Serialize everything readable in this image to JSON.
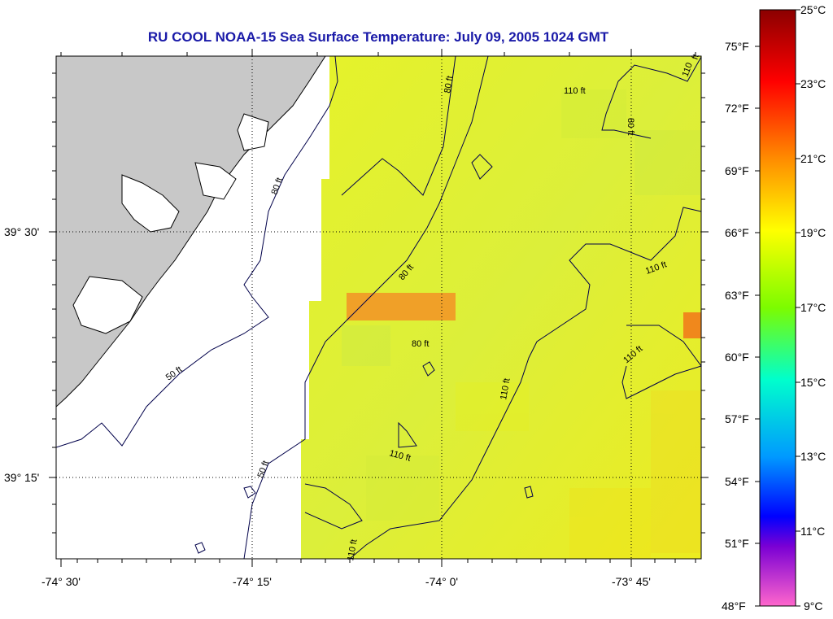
{
  "title": "RU COOL  NOAA-15  Sea Surface Temperature:  July 09, 2005 1024 GMT",
  "map": {
    "lon_labels": [
      "-74° 30'",
      "-74° 15'",
      "-74° 0'",
      "-73° 45'"
    ],
    "lat_labels": [
      "39° 30'",
      "39° 15'"
    ],
    "contour_labels": [
      "80 ft",
      "110 ft",
      "80 ft",
      "110 ft",
      "80 ft",
      "50 ft",
      "80 ft",
      "50 ft",
      "80 ft",
      "110 ft",
      "110 ft",
      "110 ft",
      "110 ft",
      "110",
      "ft"
    ],
    "colors": {
      "land": "#c8c8c8",
      "sea_warm": "#e2ee2a",
      "anomaly": "#f0a028",
      "grid": "#000000"
    }
  },
  "colorbar": {
    "celsius_labels": [
      "25°C",
      "23°C",
      "21°C",
      "19°C",
      "17°C",
      "15°C",
      "13°C",
      "11°C",
      "9°C"
    ],
    "fahrenheit_labels": [
      "75°F",
      "72°F",
      "69°F",
      "66°F",
      "63°F",
      "60°F",
      "57°F",
      "54°F",
      "51°F",
      "48°F"
    ],
    "scale_colors": [
      "#8b0000",
      "#ff0000",
      "#ff8c00",
      "#ffff00",
      "#7cfc00",
      "#00ffcc",
      "#0099ff",
      "#0000ff",
      "#7a00d4",
      "#ff00ff",
      "#ff66cc"
    ]
  }
}
